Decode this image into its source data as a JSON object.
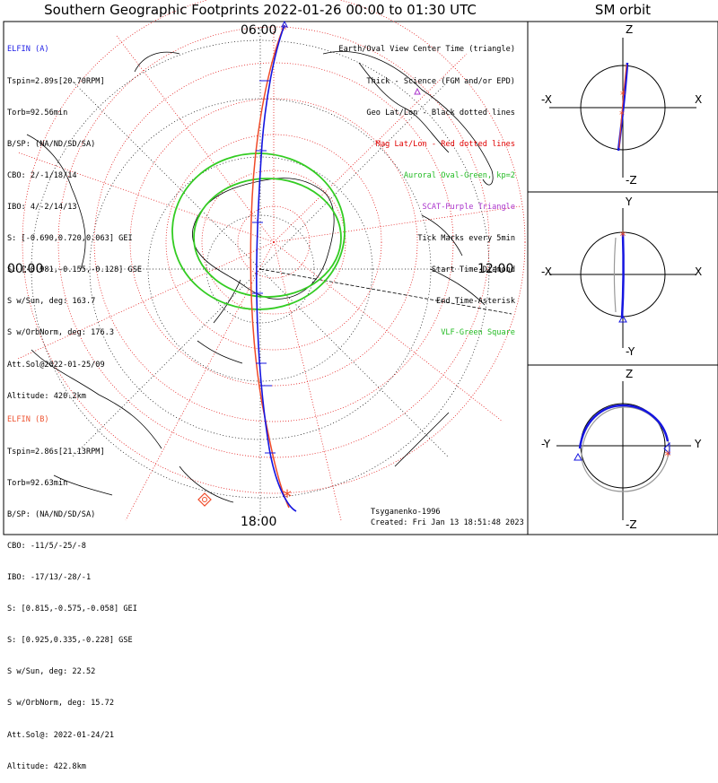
{
  "title": "Southern Geographic Footprints 2022-01-26 00:00 to 01:30 UTC",
  "sm_title": "SM orbit",
  "clock_labels": {
    "top": "06:00",
    "left": "00:00",
    "right": "12:00",
    "bottom": "18:00"
  },
  "elfin_a": {
    "name": "ELFIN (A)",
    "lines": [
      "Tspin=2.89s[20.70RPM]",
      "Torb=92.56min",
      "B/SP: (NA/ND/SD/SA)",
      "CBO: 2/-1/18/14",
      "IBO: 4/-2/14/13",
      "S: [-0.690,0.720,0.063] GEI",
      "S: [-0.981,-0.155,-0.128] GSE",
      "S w/Sun, deg: 163.7",
      "S w/OrbNorm, deg: 176.3",
      "Att.Sol@2022-01-25/09",
      "Altitude: 420.2km"
    ],
    "color": "#1e1ee6"
  },
  "elfin_b": {
    "name": "ELFIN (B)",
    "lines": [
      "Tspin=2.86s[21.13RPM]",
      "Torb=92.63min",
      "B/SP: (NA/ND/SD/SA)",
      "CBO: -11/5/-25/-8",
      "IBO: -17/13/-28/-1",
      "S: [0.815,-0.575,-0.058] GEI",
      "S: [0.925,0.335,-0.228] GSE",
      "S w/Sun, deg: 22.52",
      "S w/OrbNorm, deg: 15.72",
      "Att.Sol@: 2022-01-24/21",
      "Altitude: 422.8km"
    ],
    "color": "#ee5533"
  },
  "legend": [
    {
      "text": "Earth/Oval View Center Time (triangle)",
      "color": "#000000"
    },
    {
      "text": "Thick - Science (FGM and/or EPD)",
      "color": "#000000"
    },
    {
      "text": "Geo Lat/Lon - Black dotted lines",
      "color": "#000000"
    },
    {
      "text": "Mag Lat/Lon - Red dotted lines",
      "color": "#e00000"
    },
    {
      "text": "Auroral Oval-Green, kp=2",
      "color": "#22bb22"
    },
    {
      "text": "SCAT-Purple Triangle",
      "color": "#aa33cc"
    },
    {
      "text": "Tick Marks every 5min",
      "color": "#000000"
    },
    {
      "text": "Start Time-Diamond",
      "color": "#000000"
    },
    {
      "text": "End Time-Asterisk",
      "color": "#000000"
    },
    {
      "text": "VLF-Green Square",
      "color": "#22bb22"
    }
  ],
  "credit": "Tsyganenko-1996",
  "created": "Created: Fri Jan 13 18:51:48 2023",
  "sm_panels": {
    "p1": {
      "top": "Z",
      "bottom": "-Z",
      "left": "-X",
      "right": "X"
    },
    "p2": {
      "top": "Y",
      "bottom": "-Y",
      "left": "-X",
      "right": "X"
    },
    "p3": {
      "top": "Z",
      "bottom": "-Z",
      "left": "-Y",
      "right": "Y"
    }
  },
  "colors": {
    "a_track": "#1515e0",
    "b_track": "#f04a28",
    "oval": "#33cc22",
    "mag_grid": "#e00000"
  }
}
